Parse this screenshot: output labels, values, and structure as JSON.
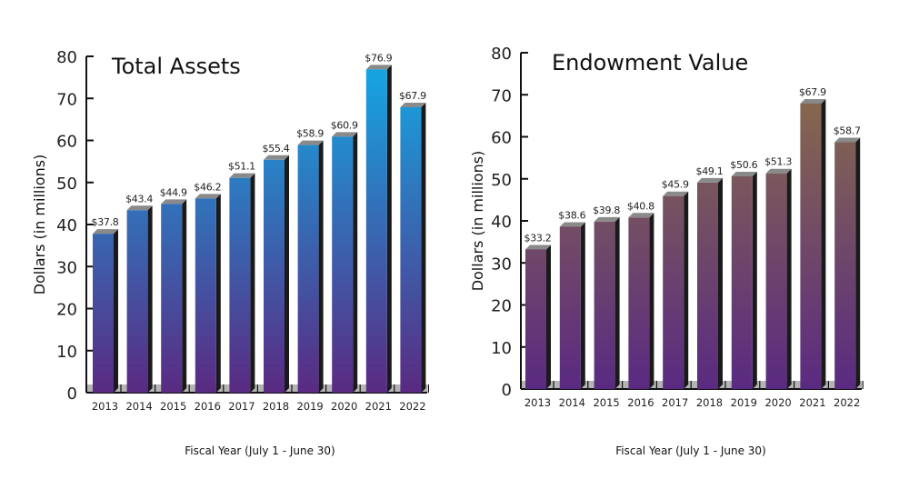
{
  "chart_data": [
    {
      "type": "bar",
      "title": "Total Assets",
      "xlabel": "Fiscal Year (July 1 - June 30)",
      "ylabel": "Dollars (in millions)",
      "ylim": [
        0,
        80
      ],
      "yticks": [
        0,
        10,
        20,
        30,
        40,
        50,
        60,
        70,
        80
      ],
      "categories": [
        "2013",
        "2014",
        "2015",
        "2016",
        "2017",
        "2018",
        "2019",
        "2020",
        "2021",
        "2022"
      ],
      "values": [
        37.8,
        43.4,
        44.9,
        46.2,
        51.1,
        55.4,
        58.9,
        60.9,
        76.9,
        67.9
      ],
      "data_labels": [
        "$37.8",
        "$43.4",
        "$44.9",
        "$46.2",
        "$51.1",
        "$55.4",
        "$58.9",
        "$60.9",
        "$76.9",
        "$67.9"
      ],
      "colors": {
        "top": "#16a3e0",
        "bottom": "#5a2a82",
        "side": "#1a1a1a",
        "cap": "#8a8a8a"
      },
      "grid": false,
      "legend": "none"
    },
    {
      "type": "bar",
      "title": "Endowment Value",
      "xlabel": "Fiscal Year (July 1 - June 30)",
      "ylabel": "Dollars (in millions)",
      "ylim": [
        0,
        80
      ],
      "yticks": [
        0,
        10,
        20,
        30,
        40,
        50,
        60,
        70,
        80
      ],
      "categories": [
        "2013",
        "2014",
        "2015",
        "2016",
        "2017",
        "2018",
        "2019",
        "2020",
        "2021",
        "2022"
      ],
      "values": [
        33.2,
        38.6,
        39.8,
        40.8,
        45.9,
        49.1,
        50.6,
        51.3,
        67.9,
        58.7
      ],
      "data_labels": [
        "$33.2",
        "$38.6",
        "$39.8",
        "$40.8",
        "$45.9",
        "$49.1",
        "$50.6",
        "$51.3",
        "$67.9",
        "$58.7"
      ],
      "colors": {
        "top": "#8a6e48",
        "bottom": "#5a2a82",
        "side": "#1a1a1a",
        "cap": "#8a8a8a"
      },
      "grid": false,
      "legend": "none"
    }
  ]
}
